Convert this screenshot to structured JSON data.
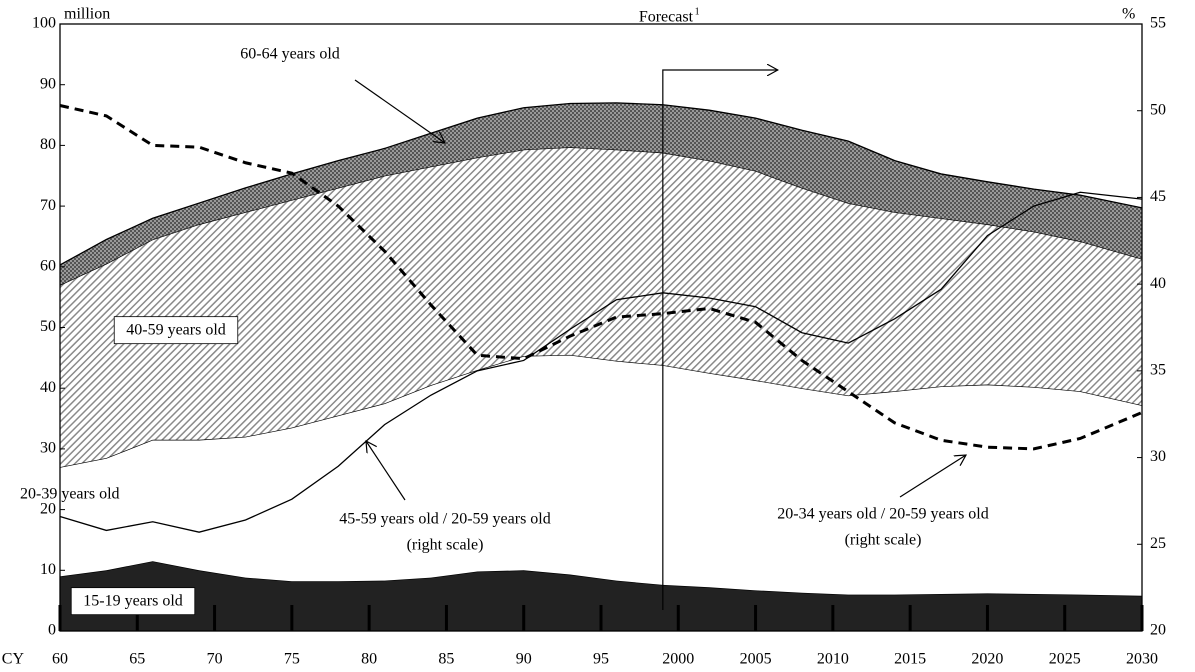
{
  "chart_data": {
    "type": "stacked_area_line",
    "y_unit": "million",
    "y2_unit": "%",
    "x_prefix": "CY",
    "x": [
      1960,
      1963,
      1966,
      1969,
      1972,
      1975,
      1978,
      1981,
      1984,
      1987,
      1990,
      1993,
      1996,
      1999,
      2002,
      2005,
      2008,
      2011,
      2014,
      2017,
      2020,
      2023,
      2026,
      2030
    ],
    "series": [
      {
        "name": "15-19 years old",
        "color": "#222222",
        "fill_style": "solid",
        "label_box": true,
        "values": [
          9,
          10,
          11.5,
          10,
          8.8,
          8.2,
          8.2,
          8.3,
          8.8,
          9.8,
          10,
          9.3,
          8.3,
          7.6,
          7.2,
          6.7,
          6.3,
          6,
          6,
          6.1,
          6.2,
          6.1,
          6,
          5.8
        ]
      },
      {
        "name": "20-39 years old",
        "color": "#ffffff",
        "fill_style": "solid",
        "label_box": false,
        "values": [
          18,
          18.5,
          20,
          21.5,
          23.2,
          25.3,
          27.3,
          29.2,
          31.7,
          33.2,
          35.3,
          36.2,
          36.2,
          36.2,
          35.3,
          34.6,
          33.7,
          32.8,
          33.5,
          34.2,
          34.4,
          34.1,
          33.5,
          31.4
        ]
      },
      {
        "name": "40-59 years old",
        "color": "#8a8a8a",
        "fill_style": "hatch",
        "label_box": true,
        "values": [
          30,
          32,
          33,
          35.5,
          37,
          37.5,
          37.5,
          37.5,
          36,
          35,
          34,
          34.2,
          34.8,
          35,
          35,
          34.5,
          33,
          31.7,
          29.5,
          27.7,
          26.4,
          25.6,
          24.7,
          24.1
        ]
      },
      {
        "name": "60-64 years old",
        "color": "#6e6e6e",
        "fill_style": "crosshatch",
        "label_box": false,
        "values": [
          3.3,
          4,
          3.5,
          3.5,
          4,
          4.3,
          4.5,
          4.5,
          5.5,
          6.5,
          6.9,
          7.2,
          7.7,
          7.9,
          8.3,
          8.7,
          9.5,
          10.2,
          8.5,
          7.3,
          7,
          7,
          7.6,
          8.4
        ]
      },
      {
        "name": "45-59 years old / 20-59 years old",
        "note": "(right scale)",
        "axis": "y2",
        "color": "#000000",
        "dash": false,
        "values": [
          26.6,
          25.8,
          26.3,
          25.7,
          26.4,
          27.6,
          29.5,
          31.9,
          33.6,
          35,
          35.6,
          37.4,
          39.1,
          39.5,
          39.2,
          38.7,
          37.2,
          36.6,
          38,
          39.7,
          42.8,
          44.5,
          45.3,
          44.9
        ]
      },
      {
        "name": "20-34 years old / 20-59 years old",
        "note": "(right scale)",
        "axis": "y2",
        "color": "#000000",
        "dash": true,
        "values": [
          50.3,
          49.7,
          48,
          47.9,
          47,
          46.4,
          44.5,
          41.9,
          38.8,
          35.9,
          35.7,
          37,
          38.1,
          38.3,
          38.6,
          37.8,
          35.6,
          33.8,
          32,
          31,
          30.6,
          30.5,
          31.1,
          32.6
        ]
      }
    ],
    "forecast": {
      "label": "Forecast",
      "note": "1",
      "x": 1999
    },
    "xlim": [
      1960,
      2030
    ],
    "xticks": [
      {
        "value": 1960,
        "label": "60"
      },
      {
        "value": 1965,
        "label": "65"
      },
      {
        "value": 1970,
        "label": "70"
      },
      {
        "value": 1975,
        "label": "75"
      },
      {
        "value": 1980,
        "label": "80"
      },
      {
        "value": 1985,
        "label": "85"
      },
      {
        "value": 1990,
        "label": "90"
      },
      {
        "value": 1995,
        "label": "95"
      },
      2000,
      2005,
      2010,
      2015,
      2020,
      2025,
      2030
    ],
    "ylim": [
      0,
      100
    ],
    "yticks": [
      0,
      10,
      20,
      30,
      40,
      50,
      60,
      70,
      80,
      90,
      100
    ],
    "y2lim": [
      20,
      55
    ],
    "y2ticks": [
      20,
      25,
      30,
      35,
      40,
      45,
      50,
      55
    ],
    "grid": false
  }
}
